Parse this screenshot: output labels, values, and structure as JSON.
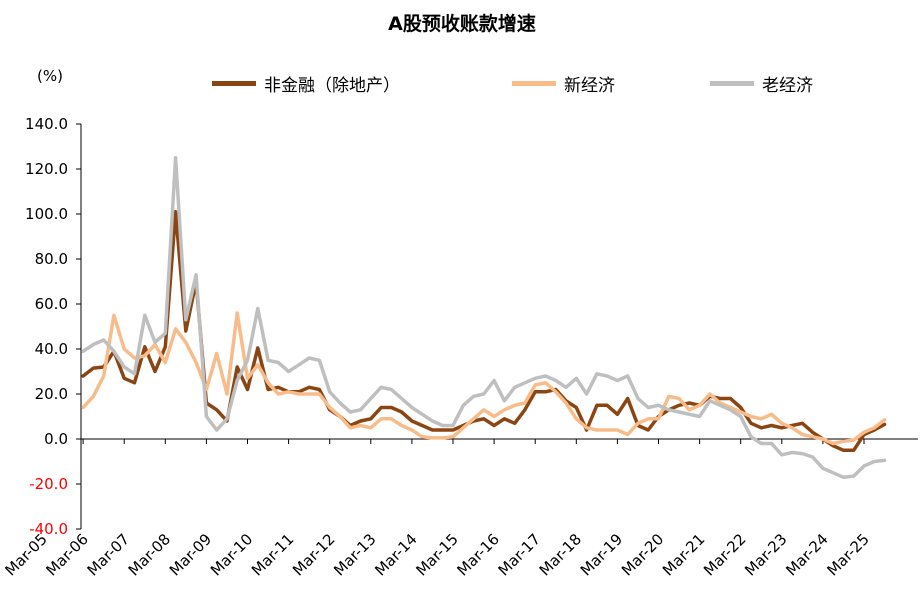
{
  "title": "A股预收账款增速",
  "unit": "(%)",
  "chart_data": {
    "type": "line",
    "title": "A股预收账款增速",
    "ylabel": "(%)",
    "xlabel": "",
    "ylim": [
      -40,
      140
    ],
    "y_ticks": [
      140.0,
      120.0,
      100.0,
      80.0,
      60.0,
      40.0,
      20.0,
      0.0,
      -20.0,
      -40.0
    ],
    "y_tick_labels": [
      "140.0",
      "120.0",
      "100.0",
      "80.0",
      "60.0",
      "40.0",
      "20.0",
      "0.0",
      "-20.0",
      "-40.0"
    ],
    "x_tick_labels": [
      "Mar-05",
      "Mar-06",
      "Mar-07",
      "Mar-08",
      "Mar-09",
      "Mar-10",
      "Mar-11",
      "Mar-12",
      "Mar-13",
      "Mar-14",
      "Mar-15",
      "Mar-16",
      "Mar-17",
      "Mar-18",
      "Mar-19",
      "Mar-20",
      "Mar-21",
      "Mar-22",
      "Mar-23",
      "Mar-24",
      "Mar-25"
    ],
    "x_start_year": 2005,
    "legend_position": "top",
    "series": [
      {
        "name": "非金融（除地产）",
        "color": "#8B4513",
        "points": [
          [
            2006.0,
            28
          ],
          [
            2006.25,
            31.5
          ],
          [
            2006.5,
            32
          ],
          [
            2006.75,
            39
          ],
          [
            2007.0,
            27
          ],
          [
            2007.25,
            25
          ],
          [
            2007.5,
            41
          ],
          [
            2007.75,
            30
          ],
          [
            2008.0,
            41
          ],
          [
            2008.25,
            101
          ],
          [
            2008.5,
            48
          ],
          [
            2008.75,
            70
          ],
          [
            2009.0,
            16
          ],
          [
            2009.25,
            13
          ],
          [
            2009.5,
            8
          ],
          [
            2009.75,
            32
          ],
          [
            2010.0,
            22
          ],
          [
            2010.25,
            40.5
          ],
          [
            2010.5,
            22
          ],
          [
            2010.75,
            23
          ],
          [
            2011.0,
            21
          ],
          [
            2011.25,
            21
          ],
          [
            2011.5,
            23
          ],
          [
            2011.75,
            22
          ],
          [
            2012.0,
            13
          ],
          [
            2012.25,
            10
          ],
          [
            2012.5,
            6
          ],
          [
            2012.75,
            8
          ],
          [
            2013.0,
            9
          ],
          [
            2013.25,
            14
          ],
          [
            2013.5,
            14
          ],
          [
            2013.75,
            12
          ],
          [
            2014.0,
            8
          ],
          [
            2014.25,
            6
          ],
          [
            2014.5,
            4
          ],
          [
            2014.75,
            4
          ],
          [
            2015.0,
            4
          ],
          [
            2015.25,
            6
          ],
          [
            2015.5,
            8
          ],
          [
            2015.75,
            9
          ],
          [
            2016.0,
            6
          ],
          [
            2016.25,
            9
          ],
          [
            2016.5,
            7
          ],
          [
            2016.75,
            13
          ],
          [
            2017.0,
            21
          ],
          [
            2017.25,
            21
          ],
          [
            2017.5,
            22
          ],
          [
            2017.75,
            17
          ],
          [
            2018.0,
            14
          ],
          [
            2018.25,
            4
          ],
          [
            2018.5,
            15
          ],
          [
            2018.75,
            15
          ],
          [
            2019.0,
            11
          ],
          [
            2019.25,
            18
          ],
          [
            2019.5,
            6
          ],
          [
            2019.75,
            4
          ],
          [
            2020.0,
            10
          ],
          [
            2020.25,
            13
          ],
          [
            2020.5,
            15
          ],
          [
            2020.75,
            16
          ],
          [
            2021.0,
            15
          ],
          [
            2021.25,
            19
          ],
          [
            2021.5,
            18
          ],
          [
            2021.75,
            18
          ],
          [
            2022.0,
            14
          ],
          [
            2022.25,
            7
          ],
          [
            2022.5,
            5
          ],
          [
            2022.75,
            6
          ],
          [
            2023.0,
            5
          ],
          [
            2023.25,
            6
          ],
          [
            2023.5,
            7
          ],
          [
            2023.75,
            3
          ],
          [
            2024.0,
            0
          ],
          [
            2024.25,
            -3
          ],
          [
            2024.5,
            -5
          ],
          [
            2024.75,
            -5
          ],
          [
            2025.0,
            2
          ],
          [
            2025.25,
            4
          ],
          [
            2025.5,
            6.5
          ]
        ]
      },
      {
        "name": "新经济",
        "color": "#F8BC8B",
        "points": [
          [
            2006.0,
            14
          ],
          [
            2006.25,
            19
          ],
          [
            2006.5,
            28
          ],
          [
            2006.75,
            55
          ],
          [
            2007.0,
            40
          ],
          [
            2007.25,
            36
          ],
          [
            2007.5,
            37
          ],
          [
            2007.75,
            42
          ],
          [
            2008.0,
            34
          ],
          [
            2008.25,
            49
          ],
          [
            2008.5,
            43
          ],
          [
            2008.75,
            34
          ],
          [
            2009.0,
            22
          ],
          [
            2009.25,
            38
          ],
          [
            2009.5,
            20
          ],
          [
            2009.75,
            56
          ],
          [
            2010.0,
            27
          ],
          [
            2010.25,
            33
          ],
          [
            2010.5,
            25
          ],
          [
            2010.75,
            20
          ],
          [
            2011.0,
            21
          ],
          [
            2011.25,
            20
          ],
          [
            2011.5,
            20
          ],
          [
            2011.75,
            20
          ],
          [
            2012.0,
            14
          ],
          [
            2012.25,
            10
          ],
          [
            2012.5,
            5
          ],
          [
            2012.75,
            6
          ],
          [
            2013.0,
            5
          ],
          [
            2013.25,
            9
          ],
          [
            2013.5,
            9
          ],
          [
            2013.75,
            6
          ],
          [
            2014.0,
            4
          ],
          [
            2014.25,
            1
          ],
          [
            2014.5,
            0.5
          ],
          [
            2014.75,
            0.5
          ],
          [
            2015.0,
            1
          ],
          [
            2015.25,
            5
          ],
          [
            2015.5,
            9
          ],
          [
            2015.75,
            13
          ],
          [
            2016.0,
            10
          ],
          [
            2016.25,
            13
          ],
          [
            2016.5,
            15
          ],
          [
            2016.75,
            16
          ],
          [
            2017.0,
            24
          ],
          [
            2017.25,
            25
          ],
          [
            2017.5,
            21
          ],
          [
            2017.75,
            16
          ],
          [
            2018.0,
            9
          ],
          [
            2018.25,
            5
          ],
          [
            2018.5,
            4
          ],
          [
            2018.75,
            4
          ],
          [
            2019.0,
            4
          ],
          [
            2019.25,
            2
          ],
          [
            2019.5,
            7
          ],
          [
            2019.75,
            9
          ],
          [
            2020.0,
            9
          ],
          [
            2020.25,
            19
          ],
          [
            2020.5,
            18
          ],
          [
            2020.75,
            13
          ],
          [
            2021.0,
            15
          ],
          [
            2021.25,
            20
          ],
          [
            2021.5,
            16
          ],
          [
            2021.75,
            14
          ],
          [
            2022.0,
            12
          ],
          [
            2022.25,
            10
          ],
          [
            2022.5,
            9
          ],
          [
            2022.75,
            11
          ],
          [
            2023.0,
            7
          ],
          [
            2023.25,
            5
          ],
          [
            2023.5,
            2
          ],
          [
            2023.75,
            1
          ],
          [
            2024.0,
            0
          ],
          [
            2024.25,
            -2
          ],
          [
            2024.5,
            -1
          ],
          [
            2024.75,
            -0.5
          ],
          [
            2025.0,
            3
          ],
          [
            2025.25,
            5
          ],
          [
            2025.5,
            8.5
          ]
        ]
      },
      {
        "name": "老经济",
        "color": "#BFBFBF",
        "points": [
          [
            2006.0,
            39
          ],
          [
            2006.25,
            42
          ],
          [
            2006.5,
            44
          ],
          [
            2006.75,
            39
          ],
          [
            2007.0,
            32
          ],
          [
            2007.25,
            29
          ],
          [
            2007.5,
            55
          ],
          [
            2007.75,
            43
          ],
          [
            2008.0,
            47
          ],
          [
            2008.25,
            125
          ],
          [
            2008.5,
            53
          ],
          [
            2008.75,
            73
          ],
          [
            2009.0,
            10
          ],
          [
            2009.25,
            4
          ],
          [
            2009.5,
            9
          ],
          [
            2009.75,
            26
          ],
          [
            2010.0,
            35
          ],
          [
            2010.25,
            58
          ],
          [
            2010.5,
            35
          ],
          [
            2010.75,
            34
          ],
          [
            2011.0,
            30
          ],
          [
            2011.25,
            33
          ],
          [
            2011.5,
            36
          ],
          [
            2011.75,
            35
          ],
          [
            2012.0,
            21
          ],
          [
            2012.25,
            16
          ],
          [
            2012.5,
            12
          ],
          [
            2012.75,
            13
          ],
          [
            2013.0,
            18
          ],
          [
            2013.25,
            23
          ],
          [
            2013.5,
            22
          ],
          [
            2013.75,
            18
          ],
          [
            2014.0,
            14
          ],
          [
            2014.25,
            11
          ],
          [
            2014.5,
            8
          ],
          [
            2014.75,
            6
          ],
          [
            2015.0,
            6
          ],
          [
            2015.25,
            15
          ],
          [
            2015.5,
            19
          ],
          [
            2015.75,
            20
          ],
          [
            2016.0,
            26
          ],
          [
            2016.25,
            17
          ],
          [
            2016.5,
            23
          ],
          [
            2016.75,
            25
          ],
          [
            2017.0,
            27
          ],
          [
            2017.25,
            28
          ],
          [
            2017.5,
            26
          ],
          [
            2017.75,
            23
          ],
          [
            2018.0,
            27
          ],
          [
            2018.25,
            20
          ],
          [
            2018.5,
            29
          ],
          [
            2018.75,
            28
          ],
          [
            2019.0,
            26
          ],
          [
            2019.25,
            28
          ],
          [
            2019.5,
            18
          ],
          [
            2019.75,
            14
          ],
          [
            2020.0,
            15
          ],
          [
            2020.25,
            13
          ],
          [
            2020.5,
            12
          ],
          [
            2020.75,
            11
          ],
          [
            2021.0,
            10
          ],
          [
            2021.25,
            17
          ],
          [
            2021.5,
            15
          ],
          [
            2021.75,
            13
          ],
          [
            2022.0,
            10
          ],
          [
            2022.25,
            1
          ],
          [
            2022.5,
            -2
          ],
          [
            2022.75,
            -2
          ],
          [
            2023.0,
            -7
          ],
          [
            2023.25,
            -6
          ],
          [
            2023.5,
            -6.5
          ],
          [
            2023.75,
            -8
          ],
          [
            2024.0,
            -13
          ],
          [
            2024.25,
            -15
          ],
          [
            2024.5,
            -17
          ],
          [
            2024.75,
            -16.5
          ],
          [
            2025.0,
            -12
          ],
          [
            2025.25,
            -10
          ],
          [
            2025.5,
            -9.5
          ]
        ]
      }
    ]
  }
}
